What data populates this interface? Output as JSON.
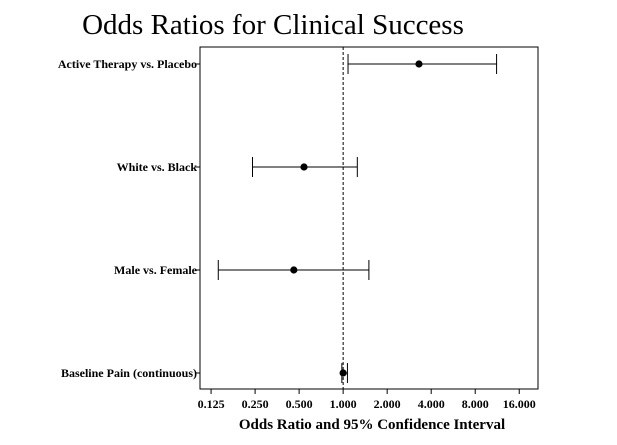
{
  "chart_data": {
    "type": "forest",
    "title": "Odds Ratios for Clinical Success",
    "xlabel": "Odds Ratio and 95% Confidence Interval",
    "xscale": "log2",
    "xlim": [
      0.105,
      21.5
    ],
    "xticks": [
      0.125,
      0.25,
      0.5,
      1.0,
      2.0,
      4.0,
      8.0,
      16.0
    ],
    "xtick_labels": [
      "0.125",
      "0.250",
      "0.500",
      "1.000",
      "2.000",
      "4.000",
      "8.000",
      "16.000"
    ],
    "reference_line": 1.0,
    "rows": [
      {
        "label": "Active Therapy vs. Placebo",
        "estimate": 3.3,
        "lower": 1.08,
        "upper": 11.2
      },
      {
        "label": "White vs. Black",
        "estimate": 0.54,
        "lower": 0.24,
        "upper": 1.25
      },
      {
        "label": "Male vs. Female",
        "estimate": 0.46,
        "lower": 0.14,
        "upper": 1.5
      },
      {
        "label": "Baseline Pain (continuous)",
        "estimate": 1.0,
        "lower": 0.98,
        "upper": 1.07
      }
    ]
  }
}
